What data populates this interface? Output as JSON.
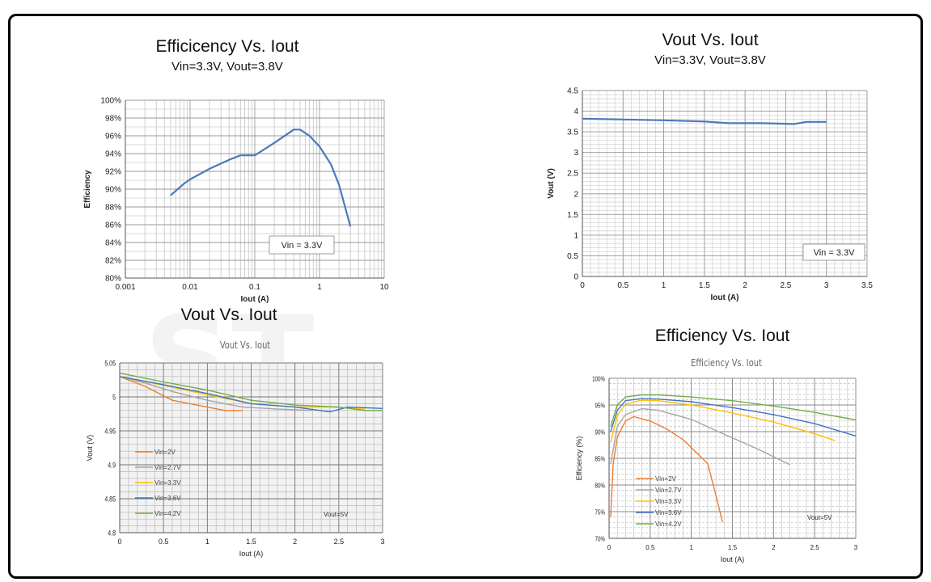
{
  "chart_data": [
    {
      "id": "c1",
      "type": "line",
      "title": "Efficicency Vs. Iout",
      "subtitle": "Vin=3.3V, Vout=3.8V",
      "xlabel": "Iout (A)",
      "ylabel": "Efficiency",
      "xscale": "log",
      "xlim": [
        0.001,
        10
      ],
      "ylim": [
        80,
        100
      ],
      "x_ticks": [
        "0.001",
        "0.01",
        "0.1",
        "1",
        "10"
      ],
      "y_ticks": [
        "80%",
        "82%",
        "84%",
        "86%",
        "88%",
        "90%",
        "92%",
        "94%",
        "96%",
        "98%",
        "100%"
      ],
      "grid": true,
      "annotation": "Vin = 3.3V",
      "series": [
        {
          "name": "Vin = 3.3V",
          "color": "#4a7ab9",
          "x": [
            0.005,
            0.008,
            0.01,
            0.02,
            0.04,
            0.06,
            0.1,
            0.2,
            0.4,
            0.5,
            0.7,
            1.0,
            1.5,
            2.0,
            3.0
          ],
          "y": [
            89.3,
            90.6,
            91.1,
            92.3,
            93.3,
            93.8,
            93.8,
            95.2,
            96.7,
            96.7,
            96.0,
            94.8,
            92.8,
            90.5,
            85.8
          ]
        }
      ]
    },
    {
      "id": "c2",
      "type": "line",
      "title": "Vout Vs. Iout",
      "subtitle": "Vin=3.3V, Vout=3.8V",
      "xlabel": "Iout (A)",
      "ylabel": "Vout (V)",
      "xlim": [
        0,
        3.5
      ],
      "ylim": [
        0,
        4.5
      ],
      "x_ticks": [
        "0",
        "0.5",
        "1",
        "1.5",
        "2",
        "2.5",
        "3",
        "3.5"
      ],
      "y_ticks": [
        "0",
        "0.5",
        "1",
        "1.5",
        "2",
        "2.5",
        "3",
        "3.5",
        "4",
        "4.5"
      ],
      "grid": true,
      "annotation": "Vin = 3.3V",
      "series": [
        {
          "name": "Vin = 3.3V",
          "color": "#4a7ab9",
          "x": [
            0,
            0.5,
            1.0,
            1.5,
            1.8,
            2.2,
            2.6,
            2.75,
            3.0
          ],
          "y": [
            3.82,
            3.8,
            3.78,
            3.75,
            3.71,
            3.71,
            3.69,
            3.74,
            3.74
          ]
        }
      ]
    },
    {
      "id": "c3",
      "type": "line",
      "title": "Vout Vs. Iout",
      "inner_title": "Vout Vs. Iout",
      "xlabel": "Iout (A)",
      "ylabel": "Vout (V)",
      "xlim": [
        0,
        3
      ],
      "ylim": [
        4.8,
        5.05
      ],
      "x_ticks": [
        "0",
        "0.5",
        "1",
        "1.5",
        "2",
        "2.5",
        "3"
      ],
      "y_ticks": [
        "4.8",
        "4.85",
        "4.9",
        "4.95",
        "5",
        "5.05"
      ],
      "grid": true,
      "annotation": "Vout=5V",
      "series": [
        {
          "name": "Vin=2V",
          "color": "#ed7d31",
          "x": [
            0,
            0.1,
            0.3,
            0.6,
            0.8,
            1.0,
            1.2,
            1.4
          ],
          "y": [
            5.03,
            5.025,
            5.015,
            4.995,
            4.99,
            4.985,
            4.98,
            4.98
          ]
        },
        {
          "name": "Vin=2.7V",
          "color": "#a5a5a5",
          "x": [
            0,
            0.3,
            0.6,
            1.0,
            1.4,
            1.8,
            2.2
          ],
          "y": [
            5.03,
            5.02,
            5.008,
            4.995,
            4.985,
            4.982,
            4.98
          ]
        },
        {
          "name": "Vin=3.3V",
          "color": "#ffc000",
          "x": [
            0,
            0.5,
            1.0,
            1.5,
            2.0,
            2.4,
            2.8
          ],
          "y": [
            5.03,
            5.017,
            5.003,
            4.99,
            4.985,
            4.985,
            4.982
          ]
        },
        {
          "name": "Vin=3.6V",
          "color": "#4472c4",
          "x": [
            0,
            0.5,
            1.0,
            1.5,
            2.0,
            2.4,
            2.6,
            3.0
          ],
          "y": [
            5.03,
            5.018,
            5.005,
            4.99,
            4.985,
            4.978,
            4.985,
            4.983
          ]
        },
        {
          "name": "Vin=4.2V",
          "color": "#70ad47",
          "x": [
            0,
            0.5,
            1.0,
            1.5,
            2.0,
            2.5,
            2.8,
            3.0
          ],
          "y": [
            5.035,
            5.022,
            5.01,
            4.995,
            4.988,
            4.985,
            4.98,
            4.98
          ]
        }
      ]
    },
    {
      "id": "c4",
      "type": "line",
      "title": "Efficiency Vs. Iout",
      "inner_title": "Efficiency Vs. Iout",
      "xlabel": "Iout (A)",
      "ylabel": "Efficiency (%)",
      "xlim": [
        0,
        3
      ],
      "ylim": [
        70,
        100
      ],
      "x_ticks": [
        "0",
        "0.5",
        "1",
        "1.5",
        "2",
        "2.5",
        "3"
      ],
      "y_ticks": [
        "70%",
        "75%",
        "80%",
        "85%",
        "90%",
        "95%",
        "100%"
      ],
      "grid": true,
      "annotation": "Vout=5V",
      "series": [
        {
          "name": "Vin=2V",
          "color": "#ed7d31",
          "x": [
            0.02,
            0.05,
            0.1,
            0.2,
            0.3,
            0.5,
            0.7,
            0.9,
            1.0,
            1.1,
            1.2,
            1.3,
            1.38
          ],
          "y": [
            74,
            84,
            89,
            92,
            92.8,
            92,
            90.5,
            88.5,
            87,
            85.5,
            84,
            78,
            73
          ]
        },
        {
          "name": "Vin=2.7V",
          "color": "#a5a5a5",
          "x": [
            0.02,
            0.1,
            0.2,
            0.4,
            0.6,
            1.0,
            1.4,
            1.8,
            2.2
          ],
          "y": [
            84,
            91,
            93.2,
            94.3,
            94,
            92.3,
            89.5,
            86.8,
            83.8
          ]
        },
        {
          "name": "Vin=3.3V",
          "color": "#ffc000",
          "x": [
            0.02,
            0.1,
            0.2,
            0.4,
            0.6,
            1.0,
            1.5,
            2.0,
            2.5,
            2.75
          ],
          "y": [
            88,
            93,
            95.2,
            95.9,
            95.8,
            95,
            93.5,
            91.8,
            89.6,
            88.3
          ]
        },
        {
          "name": "Vin=3.6V",
          "color": "#4472c4",
          "x": [
            0.02,
            0.1,
            0.2,
            0.4,
            0.6,
            1.0,
            1.5,
            2.0,
            2.5,
            3.0
          ],
          "y": [
            90,
            94,
            95.8,
            96.2,
            96.1,
            95.6,
            94.5,
            93.2,
            91.5,
            89.2
          ]
        },
        {
          "name": "Vin=4.2V",
          "color": "#70ad47",
          "x": [
            0.02,
            0.1,
            0.2,
            0.4,
            0.6,
            1.0,
            1.5,
            2.0,
            2.5,
            3.0
          ],
          "y": [
            91,
            95,
            96.5,
            96.9,
            96.9,
            96.5,
            95.8,
            94.8,
            93.6,
            92.2
          ]
        }
      ]
    }
  ]
}
